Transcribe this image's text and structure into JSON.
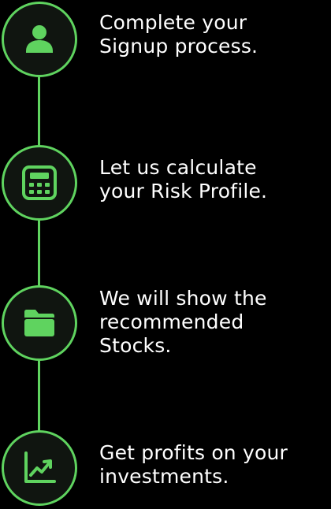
{
  "colors": {
    "accent": "#5fd35f",
    "background": "#000000",
    "circle_fill": "#101510",
    "text": "#ffffff"
  },
  "steps": [
    {
      "icon": "user-icon",
      "text": "Complete your\nSignup process."
    },
    {
      "icon": "calculator-icon",
      "text": "Let us calculate\nyour Risk Profile."
    },
    {
      "icon": "folder-icon",
      "text": "We will show the\nrecommended\nStocks."
    },
    {
      "icon": "trending-up-chart-icon",
      "text": "Get profits on your\ninvestments."
    }
  ]
}
